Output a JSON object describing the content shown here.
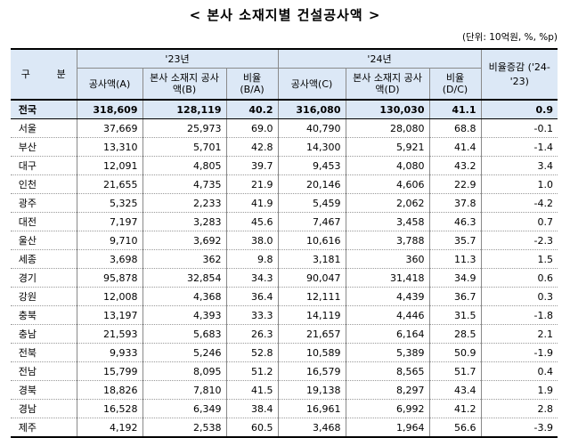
{
  "title": "< 본사 소재지별 건설공사액 >",
  "unit": "(단위: 10억원, %, %p)",
  "header": {
    "gubun": "구 분",
    "year23": "'23년",
    "year24": "'24년",
    "change": "비율증감 ('24-'23)",
    "a": "공사액(A)",
    "b": "본사 소재지 공사액(B)",
    "ba": "비율 (B/A)",
    "c": "공사액(C)",
    "d": "본사 소재지 공사액(D)",
    "dc": "비율 (D/C)"
  },
  "rows": [
    {
      "region": "전국",
      "a": "318,609",
      "b": "128,119",
      "ba": "40.2",
      "c": "316,080",
      "d": "130,030",
      "dc": "41.1",
      "chg": "0.9"
    },
    {
      "region": "서울",
      "a": "37,669",
      "b": "25,973",
      "ba": "69.0",
      "c": "40,790",
      "d": "28,080",
      "dc": "68.8",
      "chg": "-0.1"
    },
    {
      "region": "부산",
      "a": "13,310",
      "b": "5,701",
      "ba": "42.8",
      "c": "14,300",
      "d": "5,921",
      "dc": "41.4",
      "chg": "-1.4"
    },
    {
      "region": "대구",
      "a": "12,091",
      "b": "4,805",
      "ba": "39.7",
      "c": "9,453",
      "d": "4,080",
      "dc": "43.2",
      "chg": "3.4"
    },
    {
      "region": "인천",
      "a": "21,655",
      "b": "4,735",
      "ba": "21.9",
      "c": "20,146",
      "d": "4,606",
      "dc": "22.9",
      "chg": "1.0"
    },
    {
      "region": "광주",
      "a": "5,325",
      "b": "2,233",
      "ba": "41.9",
      "c": "5,459",
      "d": "2,062",
      "dc": "37.8",
      "chg": "-4.2"
    },
    {
      "region": "대전",
      "a": "7,197",
      "b": "3,283",
      "ba": "45.6",
      "c": "7,467",
      "d": "3,458",
      "dc": "46.3",
      "chg": "0.7"
    },
    {
      "region": "울산",
      "a": "9,710",
      "b": "3,692",
      "ba": "38.0",
      "c": "10,616",
      "d": "3,788",
      "dc": "35.7",
      "chg": "-2.3"
    },
    {
      "region": "세종",
      "a": "3,698",
      "b": "362",
      "ba": "9.8",
      "c": "3,181",
      "d": "360",
      "dc": "11.3",
      "chg": "1.5"
    },
    {
      "region": "경기",
      "a": "95,878",
      "b": "32,854",
      "ba": "34.3",
      "c": "90,047",
      "d": "31,418",
      "dc": "34.9",
      "chg": "0.6"
    },
    {
      "region": "강원",
      "a": "12,008",
      "b": "4,368",
      "ba": "36.4",
      "c": "12,111",
      "d": "4,439",
      "dc": "36.7",
      "chg": "0.3"
    },
    {
      "region": "충북",
      "a": "13,197",
      "b": "4,393",
      "ba": "33.3",
      "c": "14,119",
      "d": "4,446",
      "dc": "31.5",
      "chg": "-1.8"
    },
    {
      "region": "충남",
      "a": "21,593",
      "b": "5,683",
      "ba": "26.3",
      "c": "21,657",
      "d": "6,164",
      "dc": "28.5",
      "chg": "2.1"
    },
    {
      "region": "전북",
      "a": "9,933",
      "b": "5,246",
      "ba": "52.8",
      "c": "10,589",
      "d": "5,389",
      "dc": "50.9",
      "chg": "-1.9"
    },
    {
      "region": "전남",
      "a": "15,799",
      "b": "8,095",
      "ba": "51.2",
      "c": "16,579",
      "d": "8,565",
      "dc": "51.7",
      "chg": "0.4"
    },
    {
      "region": "경북",
      "a": "18,826",
      "b": "7,810",
      "ba": "41.5",
      "c": "19,138",
      "d": "8,297",
      "dc": "43.4",
      "chg": "1.9"
    },
    {
      "region": "경남",
      "a": "16,528",
      "b": "6,349",
      "ba": "38.4",
      "c": "16,961",
      "d": "6,992",
      "dc": "41.2",
      "chg": "2.8"
    },
    {
      "region": "제주",
      "a": "4,192",
      "b": "2,538",
      "ba": "60.5",
      "c": "3,468",
      "d": "1,964",
      "dc": "56.6",
      "chg": "-3.9"
    }
  ]
}
